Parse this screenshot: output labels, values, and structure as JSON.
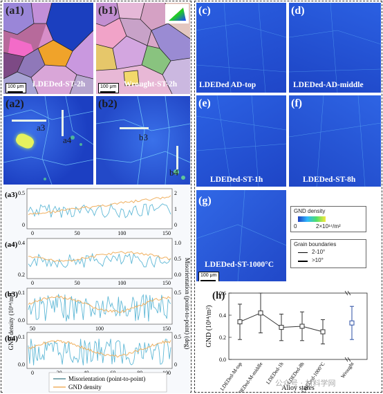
{
  "left": {
    "a1": {
      "label": "(a1)",
      "caption": "LDEDed-ST-2h",
      "scale": "100 μm"
    },
    "b1": {
      "label": "(b1)",
      "caption": "Wrought-ST-2h",
      "scale": "100 μm"
    },
    "a2": {
      "label": "(a2)",
      "line_labels": [
        "a3",
        "a4"
      ]
    },
    "b2": {
      "label": "(b2)",
      "line_labels": [
        "b3",
        "b4"
      ]
    },
    "profile_ylabel_left": "GND density (10¹⁴/m²)",
    "profile_ylabel_right": "Misorientation (point-to-point) (deg)",
    "profiles": [
      {
        "label": "(a3)",
        "left_ticks": [
          "0.5",
          "0"
        ],
        "right_ticks": [
          "2",
          "1",
          "0"
        ],
        "x_ticks": [
          "0",
          "50",
          "100",
          "150"
        ]
      },
      {
        "label": "(a4)",
        "left_ticks": [
          "0.4",
          "0.2"
        ],
        "right_ticks": [
          "1.0",
          "0.5",
          "0.0"
        ],
        "x_ticks": [
          "0",
          "50",
          "100",
          "150"
        ]
      },
      {
        "label": "(b3)",
        "left_ticks": [
          "0.1",
          "0.0"
        ],
        "right_ticks": [
          "0.5"
        ],
        "x_ticks": [
          "50",
          "100",
          "150"
        ]
      },
      {
        "label": "(b4)",
        "left_ticks": [
          "0.1",
          "0.0"
        ],
        "right_ticks": [
          "0.5",
          "0"
        ],
        "x_ticks": [
          "0",
          "20",
          "40",
          "60",
          "80",
          "100"
        ]
      }
    ],
    "legend": [
      {
        "name": "Misorientation (point-to-point)",
        "color": "#5b8f99"
      },
      {
        "name": "GND density",
        "color": "#f0b060"
      }
    ]
  },
  "right": {
    "maps": [
      {
        "label": "(c)",
        "caption": "LDEDed AD-top"
      },
      {
        "label": "(d)",
        "caption": "LDEDed-AD-middle"
      },
      {
        "label": "(e)",
        "caption": ""
      },
      {
        "label": "(f)",
        "caption": ""
      },
      {
        "label": "",
        "caption": "LDEDed-ST-1h"
      },
      {
        "label": "",
        "caption": "LDEDed-ST-8h"
      }
    ],
    "g": {
      "label": "(g)",
      "caption": "LDEDed-ST-1000°C",
      "scale": "100 μm"
    },
    "gnd_legend": {
      "title": "GND density",
      "min": "0",
      "max": "2×10¹⁴/m²"
    },
    "gb_legend": {
      "title": "Grain boundaries",
      "items": [
        "2-10°",
        "&gt;10°"
      ]
    },
    "h": {
      "label": "(h)"
    }
  },
  "chart_data": {
    "type": "scatter",
    "title": "",
    "xlabel": "Alloy states",
    "ylabel": "GND (10¹⁴/m²)",
    "ylim": [
      0.0,
      0.6
    ],
    "y_ticks": [
      "0.0",
      "0.2",
      "0.4",
      "0.6"
    ],
    "categories": [
      "LDEDed-M-top",
      "LDEDed-M-middle",
      "LDEDed-1h",
      "LDEDed-8h",
      "LDEDed-1000°C",
      "Wrought"
    ],
    "values": [
      0.34,
      0.42,
      0.29,
      0.3,
      0.25,
      0.33
    ],
    "error": [
      0.16,
      0.18,
      0.12,
      0.13,
      0.11,
      0.15
    ],
    "series_colors": {
      "ldeded": "#333333",
      "wrought": "#2a4ea3"
    }
  },
  "watermark": "公众号 · 材料学网"
}
